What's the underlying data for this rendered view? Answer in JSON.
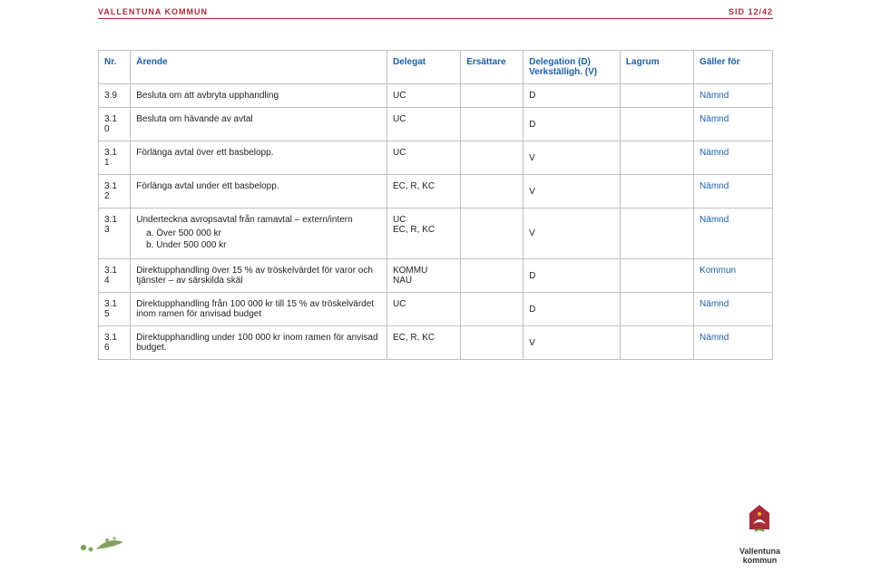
{
  "header": {
    "org": "VALLENTUNA KOMMUN",
    "pagecode": "SID 12/42"
  },
  "logo": {
    "label": "Vallentuna\nkommun",
    "accent": "#a72c3a"
  },
  "table": {
    "columns": {
      "nr": "Nr.",
      "arende": "Ärende",
      "delegat": "Delegat",
      "ersattare": "Ersättare",
      "dv": "Delegation (D)\nVerkställigh. (V)",
      "lagrum": "Lagrum",
      "galler": "Gäller för"
    },
    "rows": [
      {
        "nr": "3.9",
        "arende": "Besluta om att avbryta upphandling",
        "delegat": "UC",
        "ersattare": "",
        "dv": "D",
        "lagrum": "",
        "galler": "Nämnd"
      },
      {
        "nr": "3.1\n0",
        "arende": "Besluta om hävande av avtal",
        "delegat": "UC",
        "ersattare": "",
        "dv": "D",
        "lagrum": "",
        "galler": "Nämnd"
      },
      {
        "nr": "3.1\n1",
        "arende": "Förlänga avtal över ett basbelopp.",
        "delegat": "UC",
        "ersattare": "",
        "dv": "V",
        "lagrum": "",
        "galler": "Nämnd"
      },
      {
        "nr": "3.1\n2",
        "arende": "Förlänga avtal under ett basbelopp.",
        "delegat": "EC, R, KC",
        "ersattare": "",
        "dv": "V",
        "lagrum": "",
        "galler": "Nämnd"
      },
      {
        "nr": "3.1\n3",
        "arende": "Underteckna avropsavtal från ramavtal – extern/intern",
        "sub": [
          "Över 500 000 kr",
          "Under 500 000 kr"
        ],
        "delegat": "UC\nEC, R, KC",
        "ersattare": "",
        "dv": "V",
        "lagrum": "",
        "galler": "Nämnd"
      },
      {
        "nr": "3.1\n4",
        "arende": "Direktupphandling över 15 % av tröskelvärdet för varor och tjänster – av särskilda skäl",
        "delegat": "KOMMU\nNAU",
        "ersattare": "",
        "dv": "D",
        "lagrum": "",
        "galler": "Kommun"
      },
      {
        "nr": "3.1\n5",
        "arende": "Direktupphandling från 100 000 kr till 15 % av tröskelvärdet inom ramen för anvisad budget",
        "delegat": "UC",
        "ersattare": "",
        "dv": "D",
        "lagrum": "",
        "galler": "Nämnd"
      },
      {
        "nr": "3.1\n6",
        "arende": "Direktupphandling under 100 000 kr inom ramen för anvisad budget.",
        "delegat": "EC, R, KC",
        "ersattare": "",
        "dv": "V",
        "lagrum": "",
        "galler": "Nämnd"
      }
    ]
  }
}
